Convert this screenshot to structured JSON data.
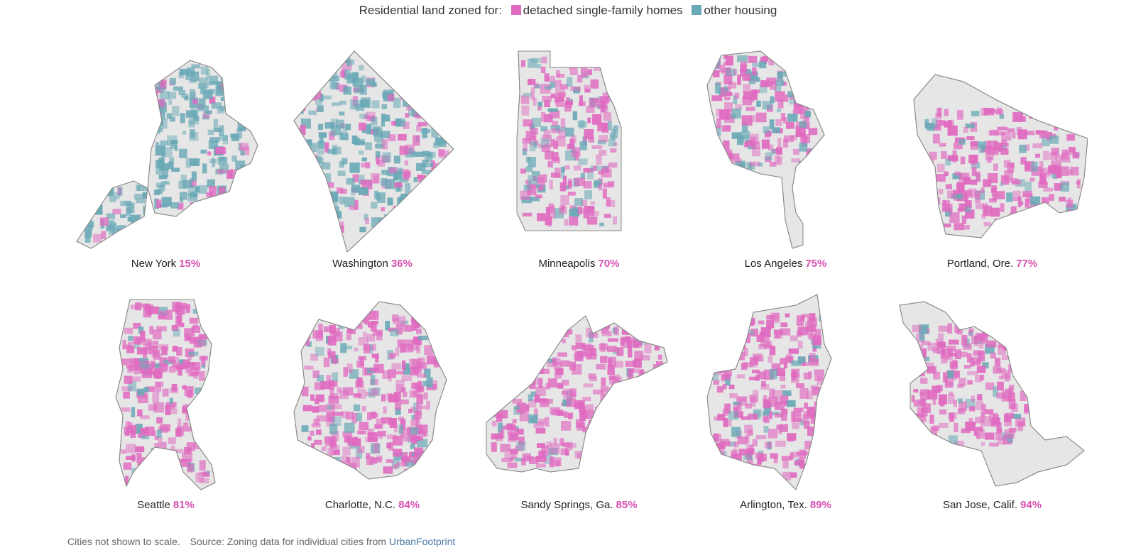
{
  "legend": {
    "prefix": "Residential land zoned for:",
    "items": [
      {
        "label": "detached single-family homes",
        "color": "#e06ac0"
      },
      {
        "label": "other housing",
        "color": "#6aa9b6"
      }
    ]
  },
  "cities": [
    {
      "name": "New York",
      "pct": "15%",
      "share": 0.15
    },
    {
      "name": "Washington",
      "pct": "36%",
      "share": 0.36
    },
    {
      "name": "Minneapolis",
      "pct": "70%",
      "share": 0.7
    },
    {
      "name": "Los Angeles",
      "pct": "75%",
      "share": 0.75
    },
    {
      "name": "Portland, Ore.",
      "pct": "77%",
      "share": 0.77
    },
    {
      "name": "Seattle",
      "pct": "81%",
      "share": 0.81
    },
    {
      "name": "Charlotte, N.C.",
      "pct": "84%",
      "share": 0.84
    },
    {
      "name": "Sandy Springs, Ga.",
      "pct": "85%",
      "share": 0.85
    },
    {
      "name": "Arlington, Tex.",
      "pct": "89%",
      "share": 0.89
    },
    {
      "name": "San Jose, Calif.",
      "pct": "94%",
      "share": 0.94
    }
  ],
  "footer": {
    "note": "Cities not shown to scale.",
    "source_prefix": "Source: Zoning data for individual cities from",
    "source_link": "UrbanFootprint"
  },
  "colors": {
    "single_family": "#e06ac0",
    "other_housing": "#6aa9b6",
    "nonresidential": "#e6e6e6",
    "outline": "#888888"
  }
}
